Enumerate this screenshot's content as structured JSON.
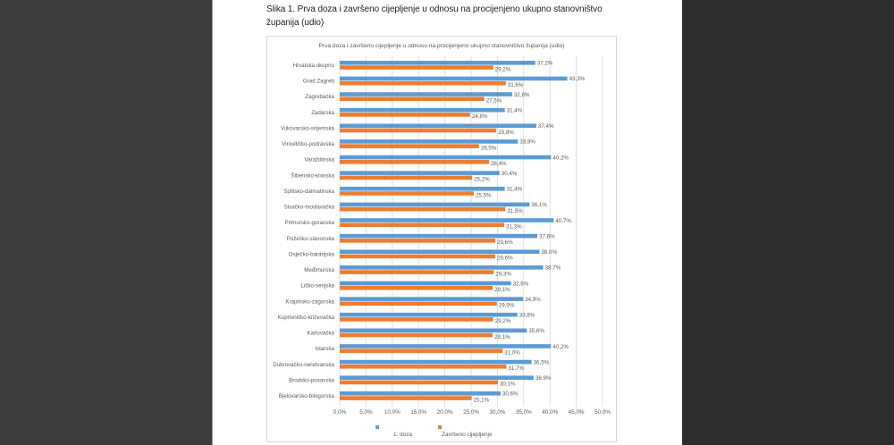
{
  "heading": {
    "line1": "Slika 1. Prva doza i završeno cijepljenje u odnosu na procijenjeno ukupno stanovništvo",
    "line2": "županija (udio)"
  },
  "colors": {
    "viewer_left": "#3d3d3d",
    "viewer_right": "#2e2e2e",
    "page": "#ffffff",
    "gridline": "#d9d9d9"
  },
  "chart_data": {
    "type": "bar",
    "orientation": "horizontal",
    "title": "Prva doza i završeno cijepljenje u odnosu na procijenjeno ukupno stanovništvo županija (udio)",
    "categories": [
      "Hrvatska ukupno",
      "Grad Zagreb",
      "Zagrebačka",
      "Zadarska",
      "Vukovarsko-srijemska",
      "Virovitičko-podravska",
      "Varaždinska",
      "Šibensko-kninska",
      "Splitsko-dalmatinska",
      "Sisačko-moslavačka",
      "Primorsko-goranska",
      "Požeško-slavonska",
      "Osječko-baranjska",
      "Međimurska",
      "Ličko-senjska",
      "Krapinsko-zagorska",
      "Koprivničko-križevačka",
      "Karlovačka",
      "Istarska",
      "Dubrovačko-neretvanska",
      "Brodsko-posavska",
      "Bjelovarsko-bilogorska"
    ],
    "series": [
      {
        "name": "1. doza",
        "color": "#5b9bd5",
        "values": [
          37.2,
          43.3,
          32.8,
          31.4,
          37.4,
          33.9,
          40.2,
          30.4,
          31.4,
          36.1,
          40.7,
          37.6,
          38.0,
          38.7,
          32.6,
          34.9,
          33.8,
          35.6,
          40.2,
          36.5,
          36.9,
          30.6
        ]
      },
      {
        "name": "Završeno cijepljenje",
        "color": "#ed7d31",
        "values": [
          29.2,
          31.6,
          27.5,
          24.8,
          29.8,
          26.5,
          28.4,
          25.2,
          25.5,
          31.5,
          31.3,
          29.6,
          29.6,
          29.3,
          29.1,
          29.9,
          29.2,
          29.1,
          31.0,
          31.7,
          30.1,
          25.1
        ]
      }
    ],
    "xlim": [
      0,
      50
    ],
    "xticks": [
      0,
      5,
      10,
      15,
      20,
      25,
      30,
      35,
      40,
      45,
      50
    ],
    "xtick_labels": [
      "0,0%",
      "5,0%",
      "10,0%",
      "15,0%",
      "20,0%",
      "25,0%",
      "30,0%",
      "35,0%",
      "40,0%",
      "45,0%",
      "50,0%"
    ],
    "grid": true,
    "data_labels": true,
    "legend": "bottom"
  }
}
